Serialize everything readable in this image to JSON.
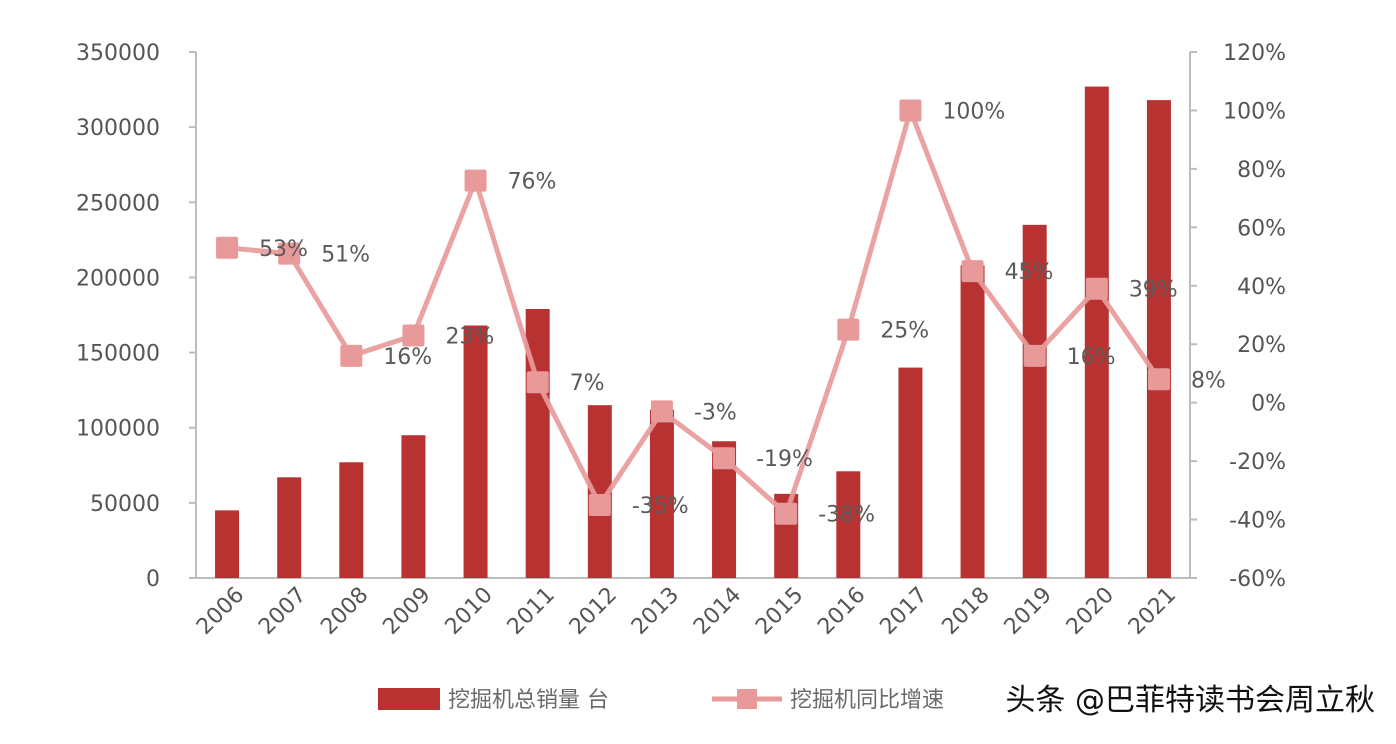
{
  "chart_data": {
    "type": "bar",
    "categories": [
      "2006",
      "2007",
      "2008",
      "2009",
      "2010",
      "2011",
      "2012",
      "2013",
      "2014",
      "2015",
      "2016",
      "2017",
      "2018",
      "2019",
      "2020",
      "2021"
    ],
    "series": [
      {
        "name": "挖掘机总销量 台",
        "type": "bar",
        "axis": "left",
        "color": "#b83232",
        "values": [
          45000,
          67000,
          77000,
          95000,
          168000,
          179000,
          115000,
          112000,
          91000,
          56000,
          71000,
          140000,
          208000,
          235000,
          327000,
          318000
        ]
      },
      {
        "name": "挖掘机同比增速",
        "type": "line",
        "axis": "right",
        "color": "#e89a9a",
        "values": [
          53,
          51,
          16,
          23,
          76,
          7,
          -35,
          -3,
          -19,
          -38,
          25,
          100,
          45,
          16,
          39,
          8
        ],
        "labels": [
          "53%",
          "51%",
          "16%",
          "23%",
          "76%",
          "7%",
          "-35%",
          "-3%",
          "-19%",
          "-38%",
          "25%",
          "100%",
          "45%",
          "16%",
          "39%",
          "8%"
        ]
      }
    ],
    "y_left": {
      "min": 0,
      "max": 350000,
      "ticks": [
        "0",
        "50000",
        "100000",
        "150000",
        "200000",
        "250000",
        "300000",
        "350000"
      ]
    },
    "y_right": {
      "min": -60,
      "max": 120,
      "ticks": [
        "-60%",
        "-40%",
        "-20%",
        "0%",
        "20%",
        "40%",
        "60%",
        "80%",
        "100%",
        "120%"
      ]
    },
    "grid": false,
    "legend_position": "bottom",
    "watermark": "头条 @巴菲特读书会周立秋"
  }
}
